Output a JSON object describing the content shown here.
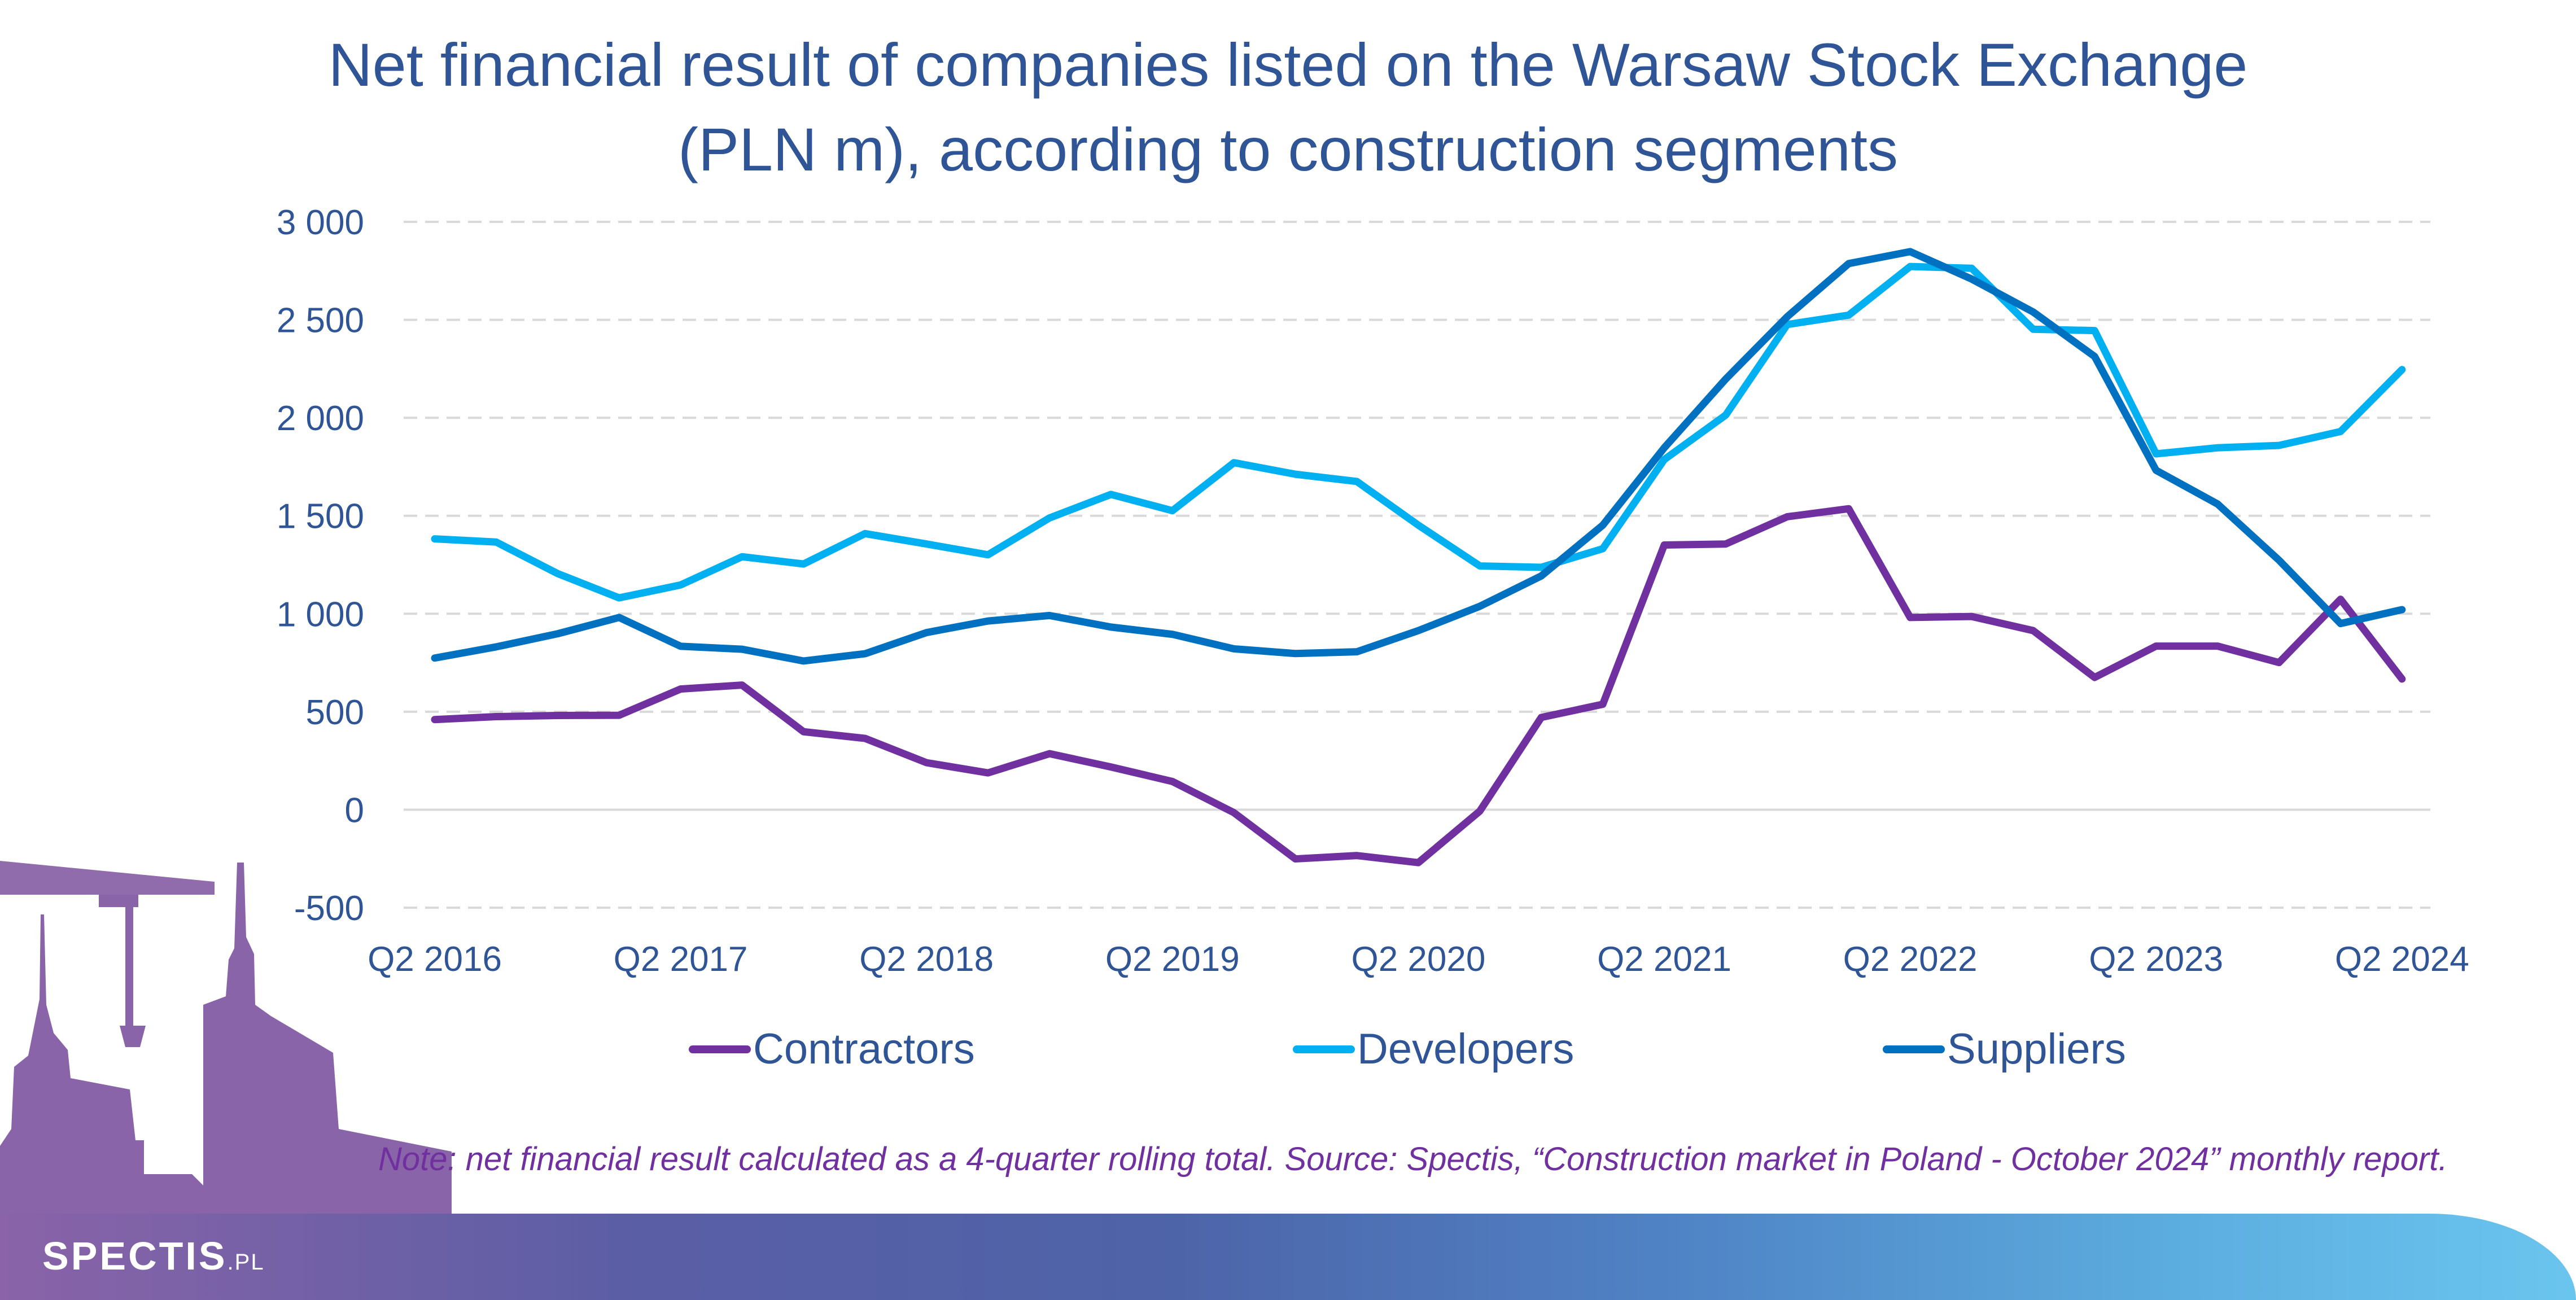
{
  "chart_data": {
    "type": "line",
    "title": "Net financial result of companies listed on the Warsaw Stock Exchange (PLN m), according to construction segments",
    "title_lines": [
      "Net financial result of companies listed on the Warsaw Stock Exchange",
      "(PLN m), according to construction segments"
    ],
    "xlabel": "",
    "ylabel": "",
    "ylim": [
      -500,
      3000
    ],
    "y_ticks": [
      -500,
      0,
      500,
      1000,
      1500,
      2000,
      2500,
      3000
    ],
    "y_tick_labels": [
      "-500",
      "0",
      "500",
      "1 000",
      "1 500",
      "2 000",
      "2 500",
      "3 000"
    ],
    "x": [
      "Q2 2016",
      "Q3 2016",
      "Q4 2016",
      "Q1 2017",
      "Q2 2017",
      "Q3 2017",
      "Q4 2017",
      "Q1 2018",
      "Q2 2018",
      "Q3 2018",
      "Q4 2018",
      "Q1 2019",
      "Q2 2019",
      "Q3 2019",
      "Q4 2019",
      "Q1 2020",
      "Q2 2020",
      "Q3 2020",
      "Q4 2020",
      "Q1 2021",
      "Q2 2021",
      "Q3 2021",
      "Q4 2021",
      "Q1 2022",
      "Q2 2022",
      "Q3 2022",
      "Q4 2022",
      "Q1 2023",
      "Q2 2023",
      "Q3 2023",
      "Q4 2023",
      "Q1 2024",
      "Q2 2024"
    ],
    "x_tick_labels": [
      "Q2 2016",
      "Q2 2017",
      "Q2 2018",
      "Q2 2019",
      "Q2 2020",
      "Q2 2021",
      "Q2 2022",
      "Q2 2023",
      "Q2 2024"
    ],
    "x_tick_every": 4,
    "grid": true,
    "legend_position": "bottom",
    "series": [
      {
        "name": "Contractors",
        "color": "#7030A0",
        "values": [
          460,
          475,
          481,
          482,
          616,
          636,
          398,
          364,
          240,
          188,
          286,
          218,
          144,
          -15,
          -251,
          -234,
          -270,
          -7,
          471,
          538,
          1351,
          1356,
          1495,
          1536,
          981,
          986,
          914,
          675,
          835,
          835,
          751,
          1074,
          667
        ]
      },
      {
        "name": "Developers",
        "color": "#00B0F0",
        "values": [
          1382,
          1366,
          1205,
          1081,
          1147,
          1291,
          1254,
          1409,
          1356,
          1301,
          1489,
          1609,
          1526,
          1771,
          1712,
          1675,
          1452,
          1244,
          1237,
          1332,
          1787,
          2014,
          2476,
          2524,
          2772,
          2763,
          2452,
          2445,
          1816,
          1847,
          1859,
          1930,
          2246
        ]
      },
      {
        "name": "Suppliers",
        "color": "#0070C0",
        "values": [
          774,
          831,
          898,
          981,
          834,
          819,
          759,
          796,
          904,
          963,
          991,
          932,
          895,
          821,
          797,
          806,
          914,
          1038,
          1193,
          1452,
          1847,
          2198,
          2516,
          2787,
          2848,
          2708,
          2540,
          2313,
          1732,
          1560,
          1273,
          950,
          1021
        ]
      }
    ]
  },
  "note": "Note: net financial result calculated as a 4-quarter rolling total. Source: Spectis, “Construction market in Poland - October 2024” monthly report.",
  "logo": {
    "name": "SPECTIS",
    "suffix": ".PL"
  },
  "colors": {
    "title": "#2F5597",
    "note": "#7030A0",
    "skyline": "#8A64A8"
  }
}
